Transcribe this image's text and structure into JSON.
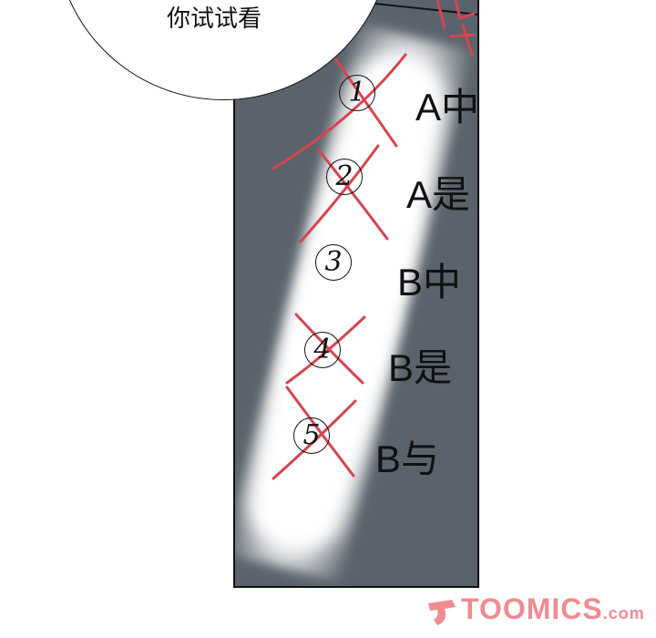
{
  "bubble": {
    "text": "你试试看"
  },
  "options": [
    {
      "number": "1",
      "label": "A中",
      "crossed": true
    },
    {
      "number": "2",
      "label": "A是",
      "crossed": true
    },
    {
      "number": "3",
      "label": "B中",
      "crossed": false
    },
    {
      "number": "4",
      "label": "B是",
      "crossed": true
    },
    {
      "number": "5",
      "label": "B与",
      "crossed": true
    }
  ],
  "watermark": {
    "brand": "TOOMICS",
    "suffix": ".com"
  },
  "colors": {
    "panel": "#5a636b",
    "cross": "#d9434f",
    "watermark": "#f08b92"
  }
}
